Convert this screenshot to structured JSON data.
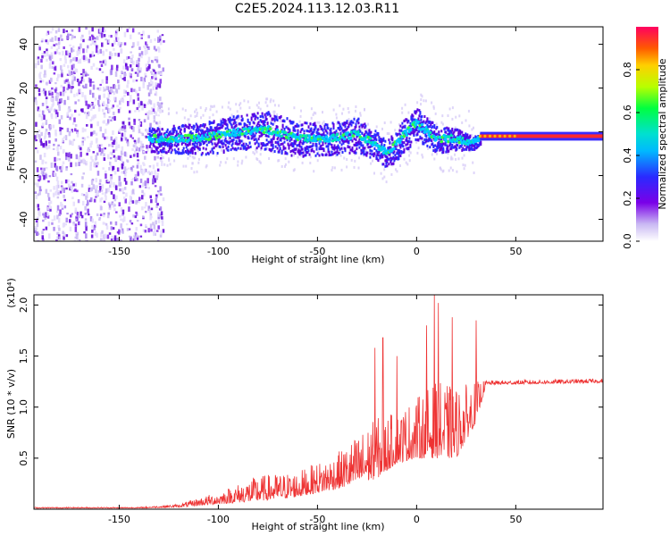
{
  "title": "C2E5.2024.113.12.03.R11",
  "colors": {
    "snr_line": "#ee3333",
    "axis": "#000000"
  },
  "chart_data": [
    {
      "type": "heatmap",
      "title": "C2E5.2024.113.12.03.R11",
      "xlabel": "Height of straight line (km)",
      "ylabel": "Frequency (Hz)",
      "xlim": [
        -193,
        94
      ],
      "ylim": [
        -50,
        48
      ],
      "x_ticks": [
        "-150",
        "-100",
        "-50",
        "0",
        "50"
      ],
      "y_ticks": [
        "-40",
        "-20",
        "0",
        "20",
        "40"
      ],
      "colorbar": {
        "label": "Normalized spectral amplitude",
        "range": [
          0,
          1
        ],
        "ticks": [
          "0.0",
          "0.2",
          "0.4",
          "0.6",
          "0.8"
        ]
      },
      "noise_region_x": [
        -193,
        -128
      ],
      "signal_track": [
        {
          "x": -135,
          "f": -3,
          "w": 7
        },
        {
          "x": -110,
          "f": -3,
          "w": 9
        },
        {
          "x": -90,
          "f": 0,
          "w": 10
        },
        {
          "x": -75,
          "f": 1,
          "w": 11
        },
        {
          "x": -60,
          "f": -3,
          "w": 10
        },
        {
          "x": -45,
          "f": -3,
          "w": 9
        },
        {
          "x": -30,
          "f": -1,
          "w": 10
        },
        {
          "x": -20,
          "f": -6,
          "w": 8
        },
        {
          "x": -15,
          "f": -10,
          "w": 8
        },
        {
          "x": -5,
          "f": 0,
          "w": 10
        },
        {
          "x": 0,
          "f": 4,
          "w": 9
        },
        {
          "x": 10,
          "f": -3,
          "w": 8
        },
        {
          "x": 20,
          "f": -3,
          "w": 6
        },
        {
          "x": 28,
          "f": -5,
          "w": 4
        },
        {
          "x": 33,
          "f": -2,
          "w": 3
        },
        {
          "x": 94,
          "f": -2,
          "w": 3
        }
      ],
      "steady_line": {
        "x_start": 32,
        "x_end": 94,
        "f": -2
      }
    },
    {
      "type": "line",
      "xlabel": "Height of straight line (km)",
      "ylabel": "SNR (10 * v/v)",
      "y_multiplier": "(x10⁴)",
      "xlim": [
        -193,
        94
      ],
      "ylim": [
        0,
        2.1
      ],
      "x_ticks": [
        "-150",
        "-100",
        "-50",
        "0",
        "50"
      ],
      "y_ticks": [
        "0.5",
        "1.0",
        "1.5",
        "2.0"
      ],
      "envelope": [
        {
          "x": -193,
          "base": 0.01,
          "spread": 0.01
        },
        {
          "x": -140,
          "base": 0.01,
          "spread": 0.01
        },
        {
          "x": -120,
          "base": 0.02,
          "spread": 0.03
        },
        {
          "x": -100,
          "base": 0.05,
          "spread": 0.12
        },
        {
          "x": -80,
          "base": 0.08,
          "spread": 0.25
        },
        {
          "x": -60,
          "base": 0.12,
          "spread": 0.25
        },
        {
          "x": -40,
          "base": 0.2,
          "spread": 0.35
        },
        {
          "x": -20,
          "base": 0.3,
          "spread": 0.6
        },
        {
          "x": -10,
          "base": 0.45,
          "spread": 0.5
        },
        {
          "x": 0,
          "base": 0.5,
          "spread": 0.6
        },
        {
          "x": 10,
          "base": 0.5,
          "spread": 0.75
        },
        {
          "x": 20,
          "base": 0.5,
          "spread": 0.7
        },
        {
          "x": 30,
          "base": 0.85,
          "spread": 0.4
        },
        {
          "x": 35,
          "base": 1.22,
          "spread": 0.04
        },
        {
          "x": 94,
          "base": 1.24,
          "spread": 0.04
        }
      ],
      "spikes": [
        {
          "x": -21,
          "y": 1.58
        },
        {
          "x": -17,
          "y": 1.68
        },
        {
          "x": -10,
          "y": 1.5
        },
        {
          "x": 5,
          "y": 1.8
        },
        {
          "x": 9,
          "y": 2.1
        },
        {
          "x": 11,
          "y": 2.02
        },
        {
          "x": 18,
          "y": 1.88
        },
        {
          "x": 30,
          "y": 1.85
        }
      ]
    }
  ]
}
